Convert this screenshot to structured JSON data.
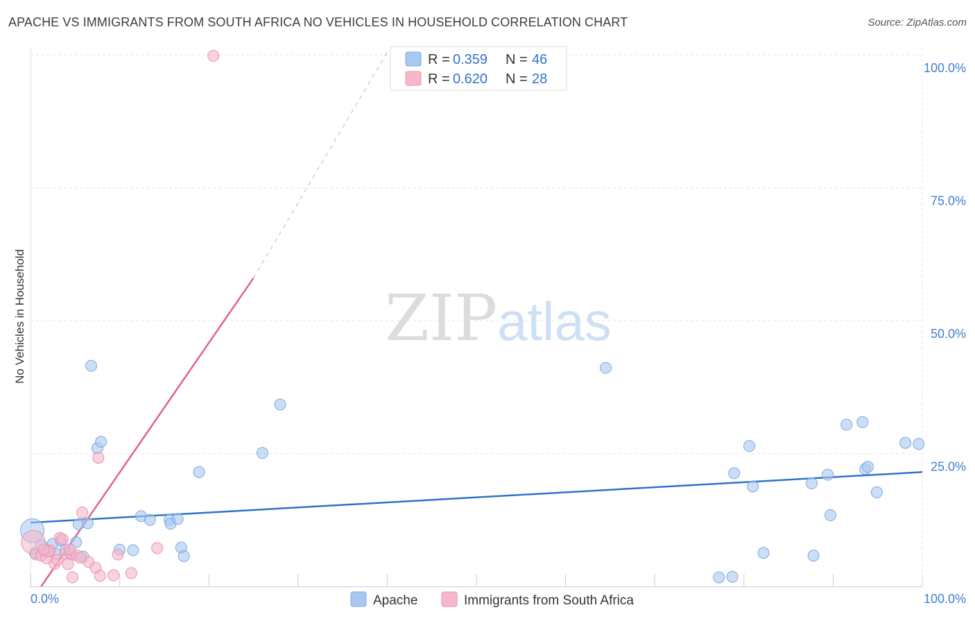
{
  "header": {
    "title": "APACHE VS IMMIGRANTS FROM SOUTH AFRICA NO VEHICLES IN HOUSEHOLD CORRELATION CHART",
    "source": "Source: ZipAtlas.com"
  },
  "watermark": {
    "part1": "ZIP",
    "part2": "atlas"
  },
  "chart_data": {
    "type": "scatter",
    "title": "APACHE VS IMMIGRANTS FROM SOUTH AFRICA NO VEHICLES IN HOUSEHOLD CORRELATION CHART",
    "xlabel": "",
    "ylabel": "No Vehicles in Household",
    "xlim": [
      0,
      100
    ],
    "ylim": [
      0,
      102
    ],
    "x_tick_labels": [
      "0.0%",
      "100.0%"
    ],
    "y_ticks": [
      25,
      50,
      75,
      100
    ],
    "y_tick_labels": [
      "25.0%",
      "50.0%",
      "75.0%",
      "100.0%"
    ],
    "grid": true,
    "legend_top": [
      {
        "r_label": "R =",
        "r_value": "0.359",
        "n_label": "N =",
        "n_value": "46",
        "color": "#a9c8f0"
      },
      {
        "r_label": "R =",
        "r_value": "0.620",
        "n_label": "N =",
        "n_value": "28",
        "color": "#f5b8cb"
      }
    ],
    "series": [
      {
        "name": "Apache",
        "color": "#a9c8f0",
        "stroke": "#7aaae0",
        "line_color": "#2f72c9",
        "trend": {
          "x0": 0,
          "y0": 12.0,
          "x1": 100,
          "y1": 21.5
        },
        "points": [
          {
            "x": 0.2,
            "y": 10.5,
            "big": true
          },
          {
            "x": 0.5,
            "y": 6.3
          },
          {
            "x": 1.2,
            "y": 7.8
          },
          {
            "x": 1.8,
            "y": 6.5
          },
          {
            "x": 2.5,
            "y": 8.0
          },
          {
            "x": 2.8,
            "y": 6.1
          },
          {
            "x": 3.4,
            "y": 8.6
          },
          {
            "x": 3.9,
            "y": 6.8
          },
          {
            "x": 4.4,
            "y": 6.3
          },
          {
            "x": 5.1,
            "y": 8.3
          },
          {
            "x": 5.4,
            "y": 11.7
          },
          {
            "x": 5.9,
            "y": 5.6
          },
          {
            "x": 6.4,
            "y": 11.9
          },
          {
            "x": 6.8,
            "y": 41.5
          },
          {
            "x": 7.5,
            "y": 26.0
          },
          {
            "x": 7.9,
            "y": 27.2
          },
          {
            "x": 10.0,
            "y": 6.9
          },
          {
            "x": 11.5,
            "y": 6.8
          },
          {
            "x": 12.4,
            "y": 13.2
          },
          {
            "x": 13.4,
            "y": 12.5
          },
          {
            "x": 15.6,
            "y": 12.5
          },
          {
            "x": 15.7,
            "y": 11.8
          },
          {
            "x": 16.5,
            "y": 12.7
          },
          {
            "x": 16.9,
            "y": 7.3
          },
          {
            "x": 17.2,
            "y": 5.7
          },
          {
            "x": 18.9,
            "y": 21.5
          },
          {
            "x": 26.0,
            "y": 25.1
          },
          {
            "x": 28.0,
            "y": 34.2
          },
          {
            "x": 64.5,
            "y": 41.1
          },
          {
            "x": 77.2,
            "y": 1.7
          },
          {
            "x": 78.7,
            "y": 1.8
          },
          {
            "x": 78.9,
            "y": 21.3
          },
          {
            "x": 80.6,
            "y": 26.4
          },
          {
            "x": 81.0,
            "y": 18.8
          },
          {
            "x": 82.2,
            "y": 6.3
          },
          {
            "x": 87.6,
            "y": 19.4
          },
          {
            "x": 87.8,
            "y": 5.8
          },
          {
            "x": 89.4,
            "y": 21.0
          },
          {
            "x": 89.7,
            "y": 13.4
          },
          {
            "x": 91.5,
            "y": 30.4
          },
          {
            "x": 93.3,
            "y": 30.9
          },
          {
            "x": 93.6,
            "y": 22.1
          },
          {
            "x": 93.9,
            "y": 22.5
          },
          {
            "x": 94.9,
            "y": 17.7
          },
          {
            "x": 98.1,
            "y": 27.0
          },
          {
            "x": 99.6,
            "y": 26.8
          }
        ]
      },
      {
        "name": "Immigrants from South Africa",
        "color": "#f5b8cb",
        "stroke": "#ec8fab",
        "line_color": "#e0628c",
        "trend": {
          "x0": 1.2,
          "y0": 0.0,
          "x1": 25.0,
          "y1": 58.0
        },
        "trend_dashed_to": {
          "x": 40.0,
          "y": 100.5
        },
        "points": [
          {
            "x": 0.3,
            "y": 8.3,
            "big": true
          },
          {
            "x": 0.6,
            "y": 6.0
          },
          {
            "x": 1.2,
            "y": 5.8
          },
          {
            "x": 1.8,
            "y": 5.3
          },
          {
            "x": 2.2,
            "y": 6.8
          },
          {
            "x": 2.7,
            "y": 4.3
          },
          {
            "x": 3.3,
            "y": 9.1
          },
          {
            "x": 3.6,
            "y": 8.9
          },
          {
            "x": 3.9,
            "y": 6.2
          },
          {
            "x": 4.2,
            "y": 4.2
          },
          {
            "x": 4.6,
            "y": 6.0
          },
          {
            "x": 4.7,
            "y": 1.7
          },
          {
            "x": 5.2,
            "y": 5.8
          },
          {
            "x": 5.8,
            "y": 13.9
          },
          {
            "x": 6.5,
            "y": 4.6
          },
          {
            "x": 7.3,
            "y": 3.5
          },
          {
            "x": 7.6,
            "y": 24.2
          },
          {
            "x": 7.8,
            "y": 2.0
          },
          {
            "x": 9.3,
            "y": 2.1
          },
          {
            "x": 9.8,
            "y": 6.0
          },
          {
            "x": 11.3,
            "y": 2.5
          },
          {
            "x": 14.2,
            "y": 7.2
          },
          {
            "x": 20.5,
            "y": 99.8
          },
          {
            "x": 2.0,
            "y": 6.6
          },
          {
            "x": 3.0,
            "y": 5.0
          },
          {
            "x": 4.4,
            "y": 7.0
          },
          {
            "x": 1.5,
            "y": 6.9
          },
          {
            "x": 5.6,
            "y": 5.4
          }
        ]
      }
    ]
  }
}
